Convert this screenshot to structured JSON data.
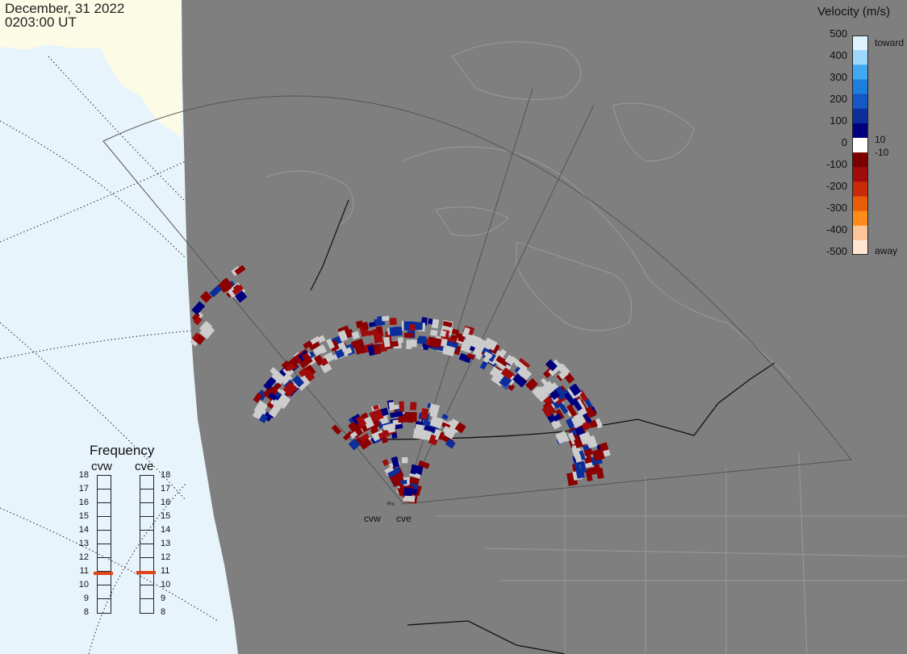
{
  "timestamp": {
    "date": "December, 31 2022",
    "time": "0203:00 UT"
  },
  "colorbar": {
    "title": "Velocity (m/s)",
    "ticks": [
      "500",
      "400",
      "300",
      "200",
      "100",
      "0",
      "-100",
      "-200",
      "-300",
      "-400",
      "-500"
    ],
    "inner_labels": {
      "pos": "10",
      "neg": "-10"
    },
    "toward_label": "toward",
    "away_label": "away",
    "colors": [
      "#dff3ff",
      "#9dd8fb",
      "#41a9f2",
      "#1c7fe0",
      "#1557c4",
      "#0c2e9a",
      "#00007f",
      "#ffffff",
      "#7a0000",
      "#a00b0b",
      "#c82a0a",
      "#e95c08",
      "#ff8c1a",
      "#fdc497",
      "#ffe5d2"
    ]
  },
  "frequency": {
    "title": "Frequency",
    "radars": [
      {
        "name": "cvw",
        "value": 10.8
      },
      {
        "name": "cve",
        "value": 10.9
      }
    ],
    "scale": [
      "18",
      "17",
      "16",
      "15",
      "14",
      "13",
      "12",
      "11",
      "10",
      "9",
      "8"
    ]
  },
  "sites": [
    {
      "label": "cvw"
    },
    {
      "label": "cve"
    }
  ],
  "palette": {
    "ocean": "#e8f4fb",
    "ice": "#fbfbe6",
    "night_land": "#7f7f7f",
    "boundaries": "#9a9a9a",
    "no_scatter": "#cccccc"
  }
}
